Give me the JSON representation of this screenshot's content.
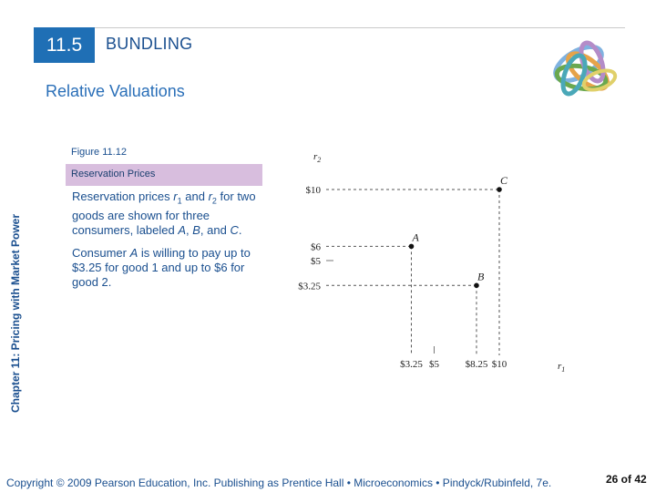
{
  "section": {
    "number": "11.5",
    "title": "BUNDLING"
  },
  "subtitle": "Relative Valuations",
  "sidebar": "Chapter 11: Pricing with Market Power",
  "figure": {
    "label": "Figure 11.12",
    "title": "Reservation Prices",
    "paragraph1": "Reservation prices r1 and r2 for two goods are shown for three consumers, labeled A, B, and C.",
    "paragraph2": "Consumer A is willing to pay up to $3.25 for good 1 and up to $6 for good 2."
  },
  "chart_data": {
    "type": "scatter",
    "xlabel": "r1",
    "ylabel": "r2",
    "x_ticks": [
      "$3.25",
      "$5",
      "$8.25",
      "$10"
    ],
    "y_ticks": [
      "$10",
      "$6",
      "$5",
      "$3.25"
    ],
    "points": [
      {
        "label": "A",
        "x": 3.25,
        "y": 6
      },
      {
        "label": "B",
        "x": 8.25,
        "y": 3.25
      },
      {
        "label": "C",
        "x": 10,
        "y": 10
      }
    ]
  },
  "footer": "Copyright © 2009 Pearson Education, Inc. Publishing as Prentice Hall • Microeconomics • Pindyck/Rubinfeld, 7e.",
  "page": "26 of 42",
  "colors": {
    "accent": "#1f6fb5",
    "text": "#1a4f8f",
    "band": "#d8bede"
  }
}
